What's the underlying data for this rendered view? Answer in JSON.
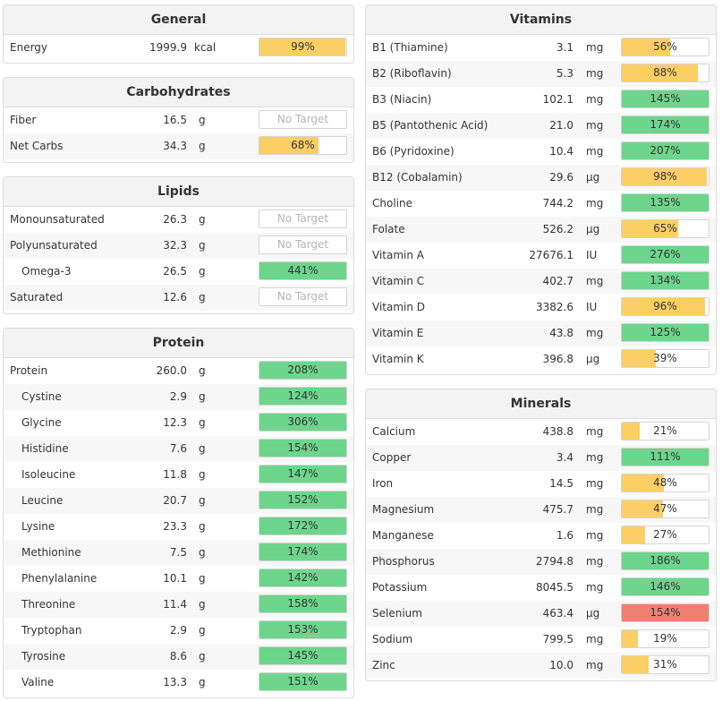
{
  "colors": {
    "green": "#6dd58c",
    "yellow": "#fbcf66",
    "red": "#f08072"
  },
  "general": {
    "title": "General",
    "rows": [
      {
        "name": "Energy",
        "amount": "1999.9",
        "unit": "kcal",
        "pct": "99%",
        "fill": 0.99,
        "color": "yellow",
        "sub": false
      }
    ]
  },
  "carbohydrates": {
    "title": "Carbohydrates",
    "rows": [
      {
        "name": "Fiber",
        "amount": "16.5",
        "unit": "g",
        "pct": "No Target",
        "fill": 0,
        "color": "none",
        "sub": false
      },
      {
        "name": "Net Carbs",
        "amount": "34.3",
        "unit": "g",
        "pct": "68%",
        "fill": 0.68,
        "color": "yellow",
        "sub": false
      }
    ]
  },
  "lipids": {
    "title": "Lipids",
    "rows": [
      {
        "name": "Monounsaturated",
        "amount": "26.3",
        "unit": "g",
        "pct": "No Target",
        "fill": 0,
        "color": "none",
        "sub": false
      },
      {
        "name": "Polyunsaturated",
        "amount": "32.3",
        "unit": "g",
        "pct": "No Target",
        "fill": 0,
        "color": "none",
        "sub": false
      },
      {
        "name": "Omega-3",
        "amount": "26.5",
        "unit": "g",
        "pct": "441%",
        "fill": 1,
        "color": "green",
        "sub": true
      },
      {
        "name": "Saturated",
        "amount": "12.6",
        "unit": "g",
        "pct": "No Target",
        "fill": 0,
        "color": "none",
        "sub": false
      }
    ]
  },
  "protein": {
    "title": "Protein",
    "rows": [
      {
        "name": "Protein",
        "amount": "260.0",
        "unit": "g",
        "pct": "208%",
        "fill": 1,
        "color": "green",
        "sub": false
      },
      {
        "name": "Cystine",
        "amount": "2.9",
        "unit": "g",
        "pct": "124%",
        "fill": 1,
        "color": "green",
        "sub": true
      },
      {
        "name": "Glycine",
        "amount": "12.3",
        "unit": "g",
        "pct": "306%",
        "fill": 1,
        "color": "green",
        "sub": true
      },
      {
        "name": "Histidine",
        "amount": "7.6",
        "unit": "g",
        "pct": "154%",
        "fill": 1,
        "color": "green",
        "sub": true
      },
      {
        "name": "Isoleucine",
        "amount": "11.8",
        "unit": "g",
        "pct": "147%",
        "fill": 1,
        "color": "green",
        "sub": true
      },
      {
        "name": "Leucine",
        "amount": "20.7",
        "unit": "g",
        "pct": "152%",
        "fill": 1,
        "color": "green",
        "sub": true
      },
      {
        "name": "Lysine",
        "amount": "23.3",
        "unit": "g",
        "pct": "172%",
        "fill": 1,
        "color": "green",
        "sub": true
      },
      {
        "name": "Methionine",
        "amount": "7.5",
        "unit": "g",
        "pct": "174%",
        "fill": 1,
        "color": "green",
        "sub": true
      },
      {
        "name": "Phenylalanine",
        "amount": "10.1",
        "unit": "g",
        "pct": "142%",
        "fill": 1,
        "color": "green",
        "sub": true
      },
      {
        "name": "Threonine",
        "amount": "11.4",
        "unit": "g",
        "pct": "158%",
        "fill": 1,
        "color": "green",
        "sub": true
      },
      {
        "name": "Tryptophan",
        "amount": "2.9",
        "unit": "g",
        "pct": "153%",
        "fill": 1,
        "color": "green",
        "sub": true
      },
      {
        "name": "Tyrosine",
        "amount": "8.6",
        "unit": "g",
        "pct": "145%",
        "fill": 1,
        "color": "green",
        "sub": true
      },
      {
        "name": "Valine",
        "amount": "13.3",
        "unit": "g",
        "pct": "151%",
        "fill": 1,
        "color": "green",
        "sub": true
      }
    ]
  },
  "vitamins": {
    "title": "Vitamins",
    "rows": [
      {
        "name": "B1 (Thiamine)",
        "amount": "3.1",
        "unit": "mg",
        "pct": "56%",
        "fill": 0.56,
        "color": "yellow",
        "sub": false
      },
      {
        "name": "B2 (Riboflavin)",
        "amount": "5.3",
        "unit": "mg",
        "pct": "88%",
        "fill": 0.88,
        "color": "yellow",
        "sub": false
      },
      {
        "name": "B3 (Niacin)",
        "amount": "102.1",
        "unit": "mg",
        "pct": "145%",
        "fill": 1,
        "color": "green",
        "sub": false
      },
      {
        "name": "B5 (Pantothenic Acid)",
        "amount": "21.0",
        "unit": "mg",
        "pct": "174%",
        "fill": 1,
        "color": "green",
        "sub": false
      },
      {
        "name": "B6 (Pyridoxine)",
        "amount": "10.4",
        "unit": "mg",
        "pct": "207%",
        "fill": 1,
        "color": "green",
        "sub": false
      },
      {
        "name": "B12 (Cobalamin)",
        "amount": "29.6",
        "unit": "µg",
        "pct": "98%",
        "fill": 0.98,
        "color": "yellow",
        "sub": false
      },
      {
        "name": "Choline",
        "amount": "744.2",
        "unit": "mg",
        "pct": "135%",
        "fill": 1,
        "color": "green",
        "sub": false
      },
      {
        "name": "Folate",
        "amount": "526.2",
        "unit": "µg",
        "pct": "65%",
        "fill": 0.65,
        "color": "yellow",
        "sub": false
      },
      {
        "name": "Vitamin A",
        "amount": "27676.1",
        "unit": "IU",
        "pct": "276%",
        "fill": 1,
        "color": "green",
        "sub": false
      },
      {
        "name": "Vitamin C",
        "amount": "402.7",
        "unit": "mg",
        "pct": "134%",
        "fill": 1,
        "color": "green",
        "sub": false
      },
      {
        "name": "Vitamin D",
        "amount": "3382.6",
        "unit": "IU",
        "pct": "96%",
        "fill": 0.96,
        "color": "yellow",
        "sub": false
      },
      {
        "name": "Vitamin E",
        "amount": "43.8",
        "unit": "mg",
        "pct": "125%",
        "fill": 1,
        "color": "green",
        "sub": false
      },
      {
        "name": "Vitamin K",
        "amount": "396.8",
        "unit": "µg",
        "pct": "39%",
        "fill": 0.39,
        "color": "yellow",
        "sub": false
      }
    ]
  },
  "minerals": {
    "title": "Minerals",
    "rows": [
      {
        "name": "Calcium",
        "amount": "438.8",
        "unit": "mg",
        "pct": "21%",
        "fill": 0.21,
        "color": "yellow",
        "sub": false
      },
      {
        "name": "Copper",
        "amount": "3.4",
        "unit": "mg",
        "pct": "111%",
        "fill": 1,
        "color": "green",
        "sub": false
      },
      {
        "name": "Iron",
        "amount": "14.5",
        "unit": "mg",
        "pct": "48%",
        "fill": 0.48,
        "color": "yellow",
        "sub": false
      },
      {
        "name": "Magnesium",
        "amount": "475.7",
        "unit": "mg",
        "pct": "47%",
        "fill": 0.47,
        "color": "yellow",
        "sub": false
      },
      {
        "name": "Manganese",
        "amount": "1.6",
        "unit": "mg",
        "pct": "27%",
        "fill": 0.27,
        "color": "yellow",
        "sub": false
      },
      {
        "name": "Phosphorus",
        "amount": "2794.8",
        "unit": "mg",
        "pct": "186%",
        "fill": 1,
        "color": "green",
        "sub": false
      },
      {
        "name": "Potassium",
        "amount": "8045.5",
        "unit": "mg",
        "pct": "146%",
        "fill": 1,
        "color": "green",
        "sub": false
      },
      {
        "name": "Selenium",
        "amount": "463.4",
        "unit": "µg",
        "pct": "154%",
        "fill": 1,
        "color": "red",
        "sub": false
      },
      {
        "name": "Sodium",
        "amount": "799.5",
        "unit": "mg",
        "pct": "19%",
        "fill": 0.19,
        "color": "yellow",
        "sub": false
      },
      {
        "name": "Zinc",
        "amount": "10.0",
        "unit": "mg",
        "pct": "31%",
        "fill": 0.31,
        "color": "yellow",
        "sub": false
      }
    ]
  }
}
